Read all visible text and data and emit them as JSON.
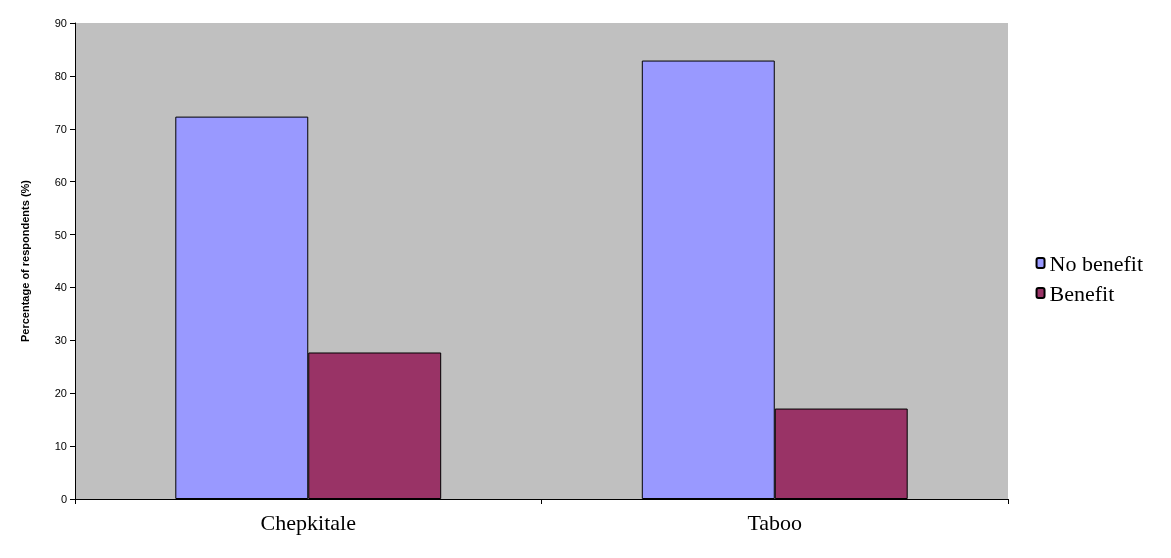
{
  "chart_data": {
    "type": "bar",
    "ylabel": "Percentage of respondents (%)",
    "categories": [
      "Chepkitale",
      "Taboo"
    ],
    "series": [
      {
        "name": "No benefit",
        "color": "#9999ff",
        "values": [
          72.3,
          82.9
        ]
      },
      {
        "name": "Benefit",
        "color": "#993366",
        "values": [
          27.7,
          17.1
        ]
      }
    ],
    "ylim": [
      0,
      90
    ],
    "yticks": [
      0,
      10,
      20,
      30,
      40,
      50,
      60,
      70,
      80,
      90
    ],
    "grid": false,
    "legend": "right"
  }
}
